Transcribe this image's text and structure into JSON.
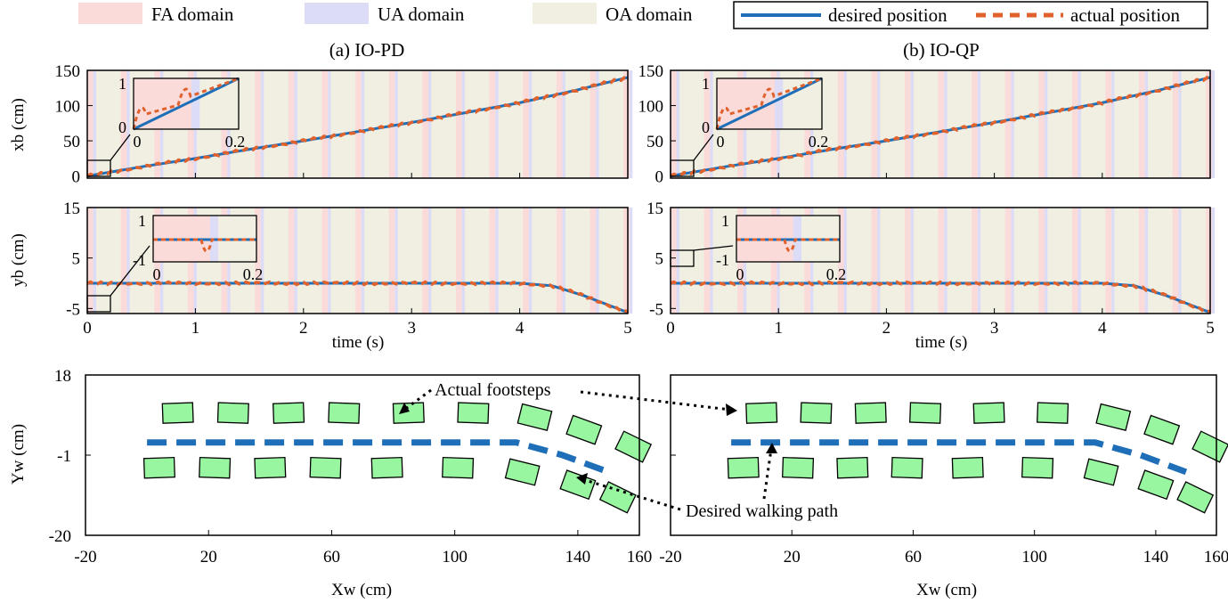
{
  "legend": {
    "items": [
      {
        "label": "FA domain",
        "color": "#fbdada"
      },
      {
        "label": "UA domain",
        "color": "#dcdcf6"
      },
      {
        "label": "OA domain",
        "color": "#f1efe2"
      }
    ],
    "lines": [
      {
        "label": "desired position",
        "color": "#1f6fb8"
      },
      {
        "label": "actual position",
        "color": "#e0612b"
      }
    ]
  },
  "chart_data": [
    {
      "type": "line",
      "title": "(a) IO-PD",
      "ylabel": "xb (cm)",
      "xlim": [
        0,
        5
      ],
      "ylim": [
        -3,
        150
      ],
      "yticks": [
        0,
        50,
        100,
        150
      ],
      "xticks": [
        0,
        1,
        2,
        3,
        4,
        5
      ],
      "x": [
        0,
        0.5,
        1,
        1.5,
        2,
        2.5,
        3,
        3.5,
        4,
        4.5,
        5
      ],
      "series": [
        {
          "name": "desired position",
          "values": [
            0,
            13,
            25,
            38,
            50,
            63,
            76,
            90,
            104,
            121,
            140
          ]
        },
        {
          "name": "actual position",
          "values": [
            0,
            13,
            25,
            38,
            50,
            63,
            76,
            90,
            104,
            121,
            140
          ]
        }
      ],
      "inset": {
        "xticks": [
          "0",
          "0.2"
        ],
        "yticks": [
          "0",
          "1"
        ]
      }
    },
    {
      "type": "line",
      "title": "(b) IO-QP",
      "ylabel": "xb (cm)",
      "xlim": [
        0,
        5
      ],
      "ylim": [
        -3,
        150
      ],
      "yticks": [
        0,
        50,
        100,
        150
      ],
      "xticks": [
        0,
        1,
        2,
        3,
        4,
        5
      ],
      "x": [
        0,
        0.5,
        1,
        1.5,
        2,
        2.5,
        3,
        3.5,
        4,
        4.5,
        5
      ],
      "series": [
        {
          "name": "desired position",
          "values": [
            0,
            13,
            25,
            38,
            50,
            63,
            76,
            90,
            104,
            121,
            140
          ]
        },
        {
          "name": "actual position",
          "values": [
            0,
            13,
            25,
            38,
            50,
            63,
            76,
            90,
            104,
            121,
            140
          ]
        }
      ],
      "inset": {
        "xticks": [
          "0",
          "0.2"
        ],
        "yticks": [
          "0",
          "1"
        ]
      }
    },
    {
      "type": "line",
      "ylabel": "yb (cm)",
      "xlabel": "time (s)",
      "xlim": [
        0,
        5
      ],
      "ylim": [
        -6,
        15
      ],
      "yticks": [
        -5,
        5,
        15
      ],
      "xticks": [
        0,
        1,
        2,
        3,
        4,
        5
      ],
      "x": [
        0,
        0.5,
        1,
        1.5,
        2,
        2.5,
        3,
        3.5,
        4,
        4.3,
        4.6,
        5
      ],
      "series": [
        {
          "name": "desired position",
          "values": [
            0,
            0,
            0,
            0,
            0,
            0,
            0,
            0,
            0,
            -0.5,
            -2.5,
            -5.8
          ]
        },
        {
          "name": "actual position",
          "values": [
            0,
            0,
            0,
            0,
            0,
            0,
            0,
            0,
            0,
            -0.5,
            -2.5,
            -5.8
          ]
        }
      ],
      "inset": {
        "xticks": [
          "0",
          "0.2"
        ],
        "yticks": [
          "-1",
          "1"
        ]
      }
    },
    {
      "type": "line",
      "ylabel": "yb (cm)",
      "xlabel": "time (s)",
      "xlim": [
        0,
        5
      ],
      "ylim": [
        -6,
        15
      ],
      "yticks": [
        -5,
        5,
        15
      ],
      "xticks": [
        0,
        1,
        2,
        3,
        4,
        5
      ],
      "x": [
        0,
        0.5,
        1,
        1.5,
        2,
        2.5,
        3,
        3.5,
        4,
        4.3,
        4.6,
        5
      ],
      "series": [
        {
          "name": "desired position",
          "values": [
            0,
            0,
            0,
            0,
            0,
            0,
            0,
            0,
            0,
            -0.5,
            -2.5,
            -5.8
          ]
        },
        {
          "name": "actual position",
          "values": [
            0,
            0,
            0,
            0,
            0,
            0,
            0,
            0,
            0,
            -0.5,
            -2.5,
            -5.8
          ]
        }
      ],
      "inset": {
        "xticks": [
          "0",
          "0.2"
        ],
        "yticks": [
          "-1",
          "1"
        ]
      }
    },
    {
      "type": "scatter",
      "ylabel": "Yw (cm)",
      "xlabel": "Xw (cm)",
      "xlim": [
        -20,
        160
      ],
      "ylim": [
        -20,
        18
      ],
      "xticks": [
        -20,
        20,
        60,
        100,
        140,
        160
      ],
      "yticks": [
        18,
        -1,
        -20
      ],
      "path": {
        "name": "Desired walking path",
        "x": [
          0,
          20,
          40,
          60,
          80,
          100,
          120,
          135,
          150
        ],
        "y": [
          2,
          2,
          2,
          2,
          2,
          2,
          2,
          -1,
          -5
        ]
      },
      "footsteps_left": {
        "x": [
          10,
          28,
          46,
          64,
          85,
          106,
          126,
          142,
          158
        ],
        "y": [
          9,
          9,
          9,
          9,
          9,
          9,
          8,
          5,
          1
        ]
      },
      "footsteps_right": {
        "x": [
          4,
          22,
          40,
          58,
          78,
          101,
          122,
          140,
          153
        ],
        "y": [
          -4,
          -4,
          -4,
          -4,
          -4,
          -4,
          -5,
          -8,
          -11
        ]
      },
      "annotations": [
        "Actual footsteps",
        "Desired walking path"
      ]
    },
    {
      "type": "scatter",
      "xlabel": "Xw (cm)",
      "xlim": [
        -20,
        160
      ],
      "ylim": [
        -20,
        18
      ],
      "xticks": [
        -20,
        20,
        60,
        100,
        140,
        160
      ],
      "path": {
        "x": [
          0,
          20,
          40,
          60,
          80,
          100,
          120,
          135,
          150
        ],
        "y": [
          2,
          2,
          2,
          2,
          2,
          2,
          2,
          -1,
          -5
        ]
      },
      "footsteps_left": {
        "x": [
          10,
          28,
          46,
          64,
          85,
          106,
          126,
          142,
          158
        ],
        "y": [
          9,
          9,
          9,
          9,
          9,
          9,
          8,
          5,
          1
        ]
      },
      "footsteps_right": {
        "x": [
          4,
          22,
          40,
          58,
          78,
          101,
          122,
          140,
          153
        ],
        "y": [
          -4,
          -4,
          -4,
          -4,
          -4,
          -4,
          -5,
          -8,
          -11
        ]
      }
    }
  ],
  "labels": {
    "panel_a": "(a) IO-PD",
    "panel_b": "(b) IO-QP",
    "xb_label": "xb (cm)",
    "yb_label": "yb (cm)",
    "time_label": "time (s)",
    "yw_label": "Yw (cm)",
    "xw_label": "Xw (cm)",
    "actual_footsteps": "Actual footsteps",
    "desired_walking_path": "Desired walking path"
  }
}
